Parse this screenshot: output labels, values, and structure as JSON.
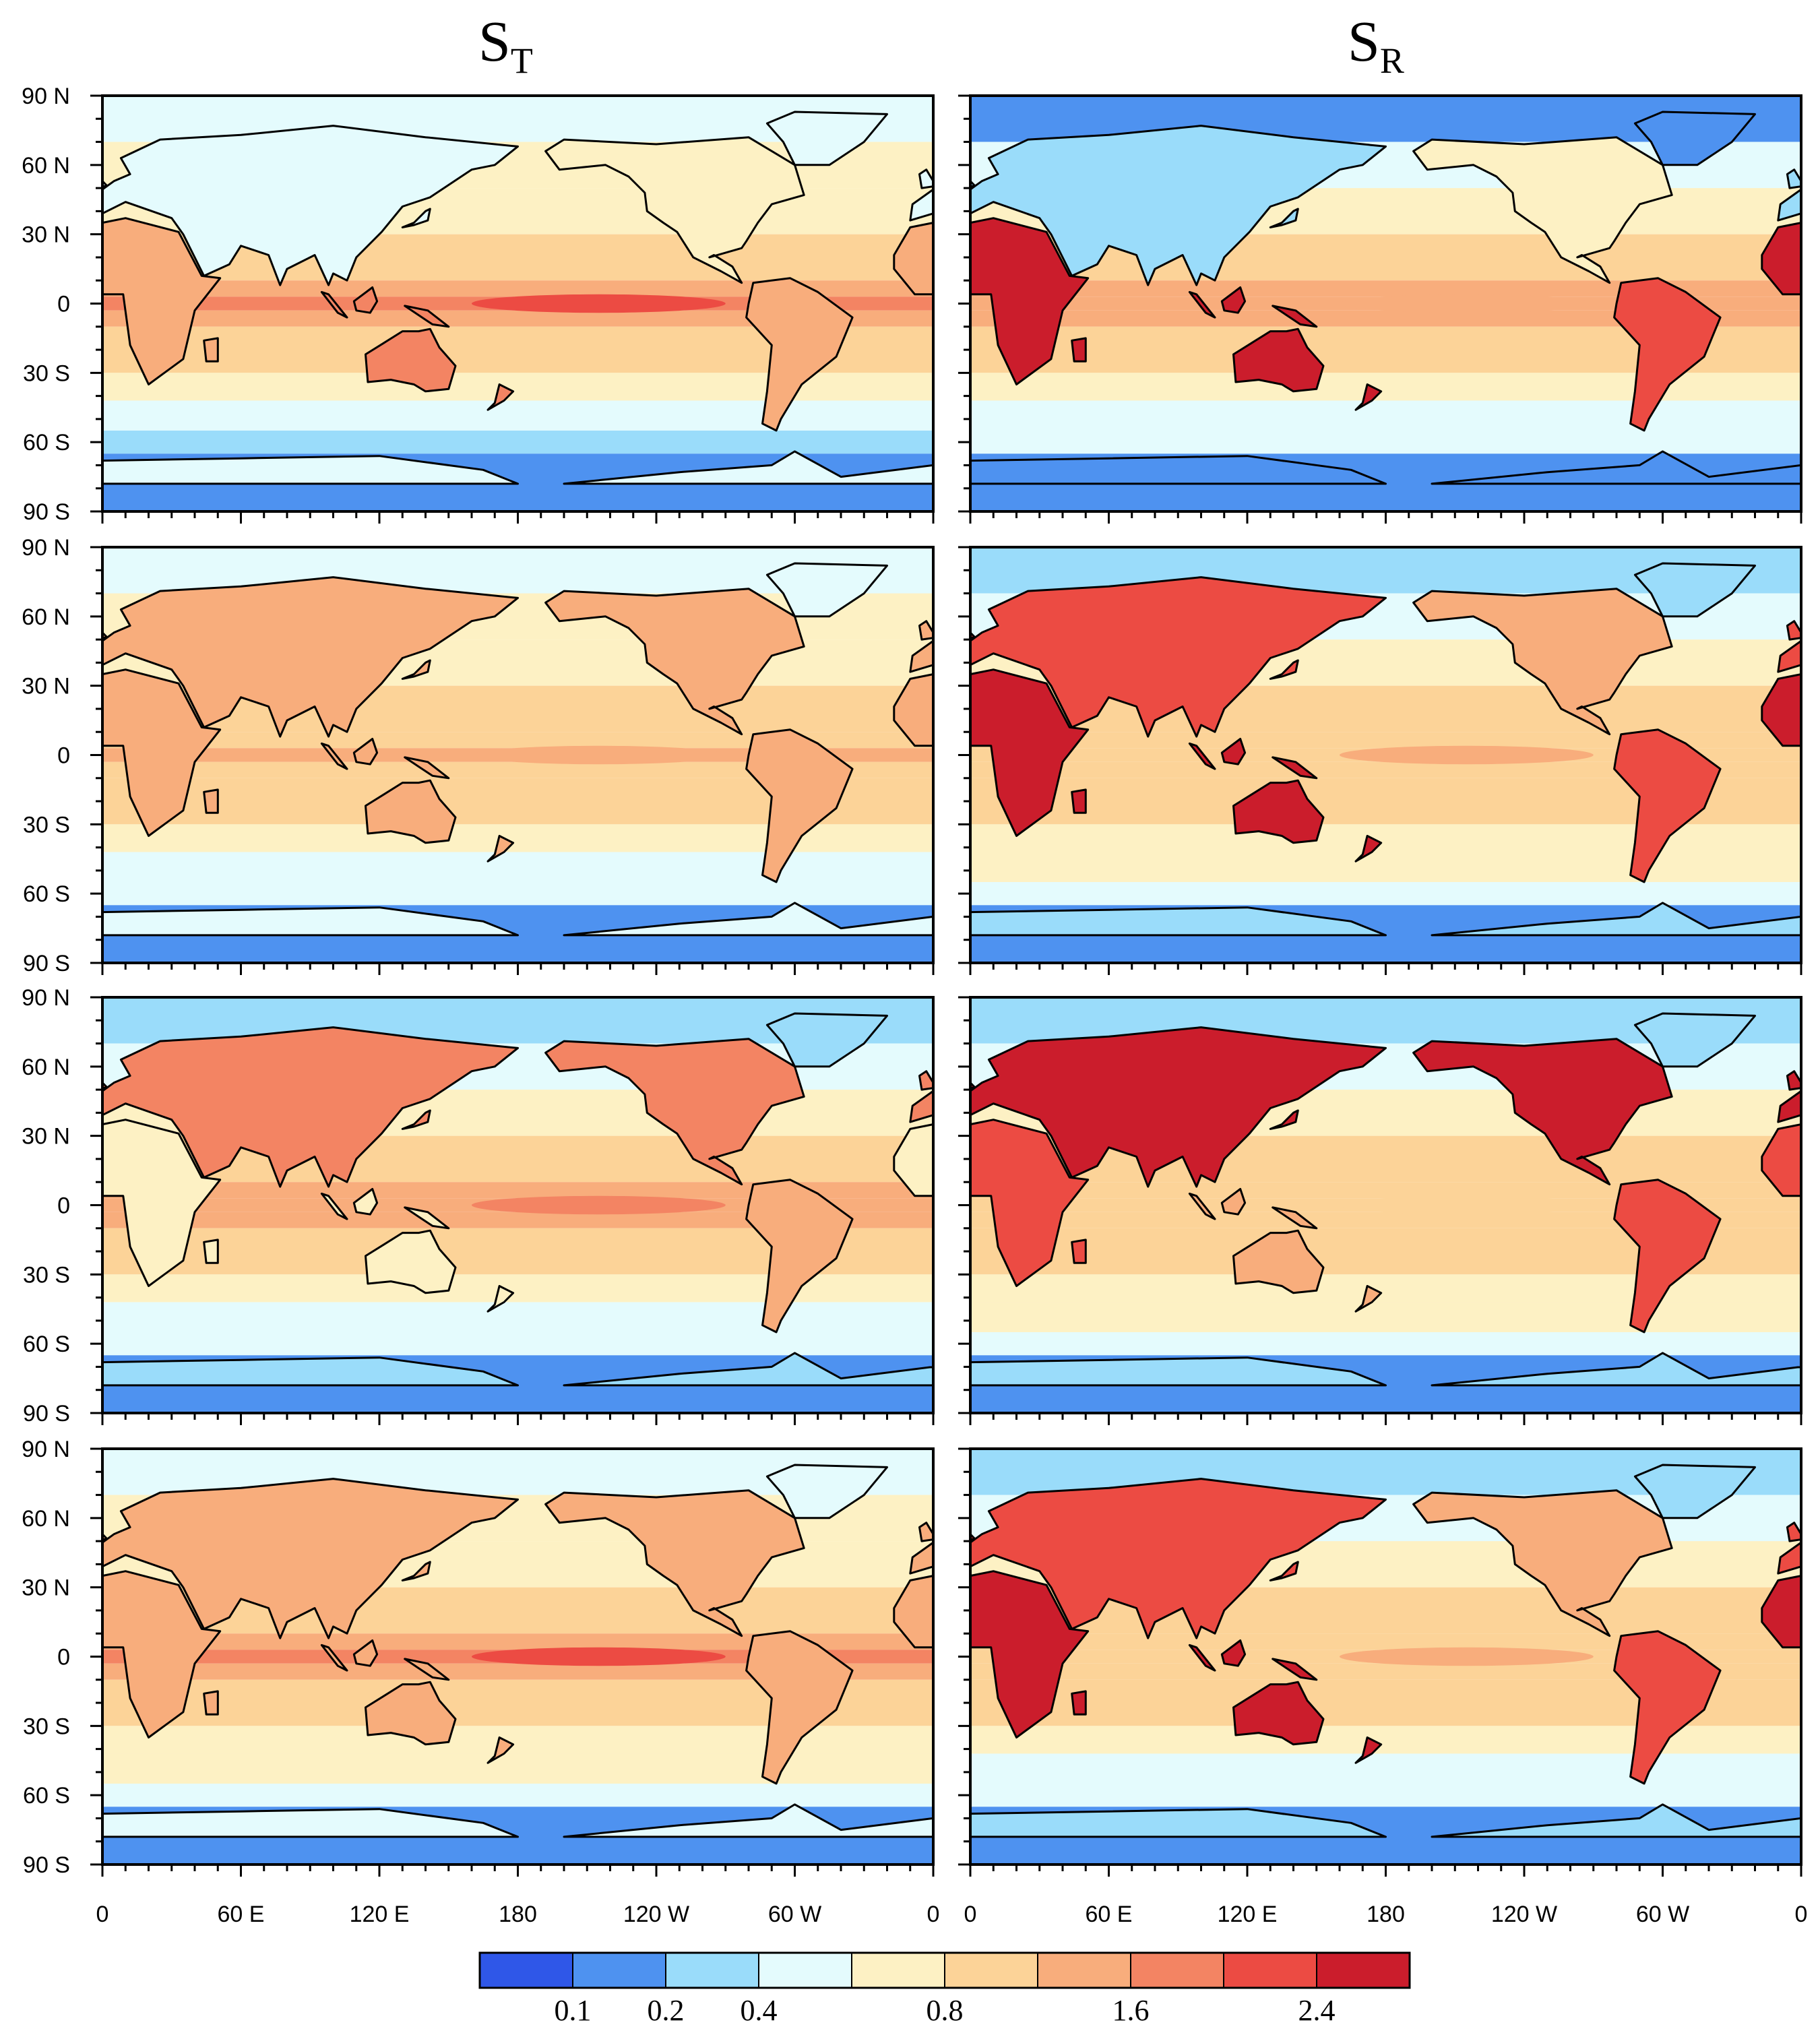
{
  "titles": {
    "left": {
      "main": "S",
      "sub": "T"
    },
    "right": {
      "main": "S",
      "sub": "R"
    }
  },
  "lat_ticks": [
    "90 N",
    "60 N",
    "30 N",
    "0",
    "30 S",
    "60 S",
    "90 S"
  ],
  "lon_ticks": [
    "0",
    "60 E",
    "120 E",
    "180",
    "120 W",
    "60 W",
    "0"
  ],
  "colorbar": {
    "colors": [
      "#2f57e8",
      "#4e92f0",
      "#9adcfa",
      "#e4fbfd",
      "#fdf1c4",
      "#fcd398",
      "#f8ad7c",
      "#f38463",
      "#ec4b43",
      "#cb1d2c"
    ],
    "labels": [
      {
        "text": "0.1",
        "boundary": 1
      },
      {
        "text": "0.2",
        "boundary": 2
      },
      {
        "text": "0.4",
        "boundary": 3
      },
      {
        "text": "0.8",
        "boundary": 5
      },
      {
        "text": "1.6",
        "boundary": 7
      },
      {
        "text": "2.4",
        "boundary": 9
      }
    ]
  },
  "panels": [
    {
      "row": 1,
      "col": "left",
      "variable": "S_T",
      "eq_band": 1.4,
      "africa": 0.9,
      "australia": 1.4,
      "south_america": 0.9,
      "eurasia": 0.3,
      "north_america": 0.5,
      "southern_ocean": 0.15,
      "arctic": 0.2
    },
    {
      "row": 1,
      "col": "right",
      "variable": "S_R",
      "eq_band": 0.9,
      "africa": 2.3,
      "australia": 2.5,
      "south_america": 1.9,
      "eurasia": 0.1,
      "north_america": 0.4,
      "southern_ocean": 0.2,
      "arctic": 0.05
    },
    {
      "row": 2,
      "col": "left",
      "variable": "S_T",
      "eq_band": 0.8,
      "africa": 1.0,
      "australia": 0.9,
      "south_america": 1.0,
      "eurasia": 0.9,
      "north_america": 0.9,
      "southern_ocean": 0.2,
      "arctic": 0.2
    },
    {
      "row": 2,
      "col": "right",
      "variable": "S_R",
      "eq_band": 0.7,
      "africa": 2.2,
      "australia": 2.3,
      "south_america": 1.6,
      "eurasia": 1.8,
      "north_america": 0.9,
      "southern_ocean": 0.3,
      "arctic": 0.1
    },
    {
      "row": 3,
      "col": "left",
      "variable": "S_T",
      "eq_band": 1.0,
      "africa": 0.4,
      "australia": 0.4,
      "south_america": 0.9,
      "eurasia": 1.5,
      "north_america": 1.4,
      "southern_ocean": 0.25,
      "arctic": 0.1
    },
    {
      "row": 3,
      "col": "right",
      "variable": "S_R",
      "eq_band": 0.6,
      "africa": 1.9,
      "australia": 1.0,
      "south_america": 1.8,
      "eurasia": 2.0,
      "north_america": 2.2,
      "southern_ocean": 0.3,
      "arctic": 0.1
    },
    {
      "row": 4,
      "col": "left",
      "variable": "S_T",
      "eq_band": 1.3,
      "africa": 0.8,
      "australia": 0.9,
      "south_america": 0.9,
      "eurasia": 0.8,
      "north_america": 0.8,
      "southern_ocean": 0.3,
      "arctic": 0.2
    },
    {
      "row": 4,
      "col": "right",
      "variable": "S_R",
      "eq_band": 0.7,
      "africa": 2.2,
      "australia": 2.2,
      "south_america": 1.9,
      "eurasia": 1.6,
      "north_america": 1.0,
      "southern_ocean": 0.2,
      "arctic": 0.1
    }
  ]
}
